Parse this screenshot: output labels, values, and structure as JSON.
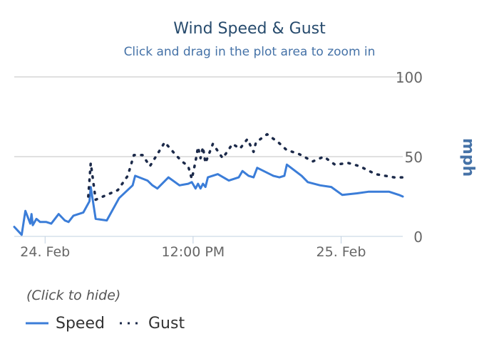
{
  "chart_data": {
    "type": "line",
    "title": "Wind Speed & Gust",
    "subtitle": "Click and drag in the plot area to zoom in",
    "ylabel": "mph",
    "ylim": [
      0,
      100
    ],
    "yticks": [
      "0",
      "50",
      "100"
    ],
    "x_range_hours": [
      0,
      31.5
    ],
    "xticks": [
      {
        "x": 2.5,
        "label": "24. Feb"
      },
      {
        "x": 14.5,
        "label": "12:00 PM"
      },
      {
        "x": 26.5,
        "label": "25. Feb"
      }
    ],
    "series": [
      {
        "name": "Speed",
        "color": "#3b7dd8",
        "style": "solid",
        "points": [
          [
            0.0,
            6
          ],
          [
            0.6,
            1
          ],
          [
            0.9,
            16
          ],
          [
            1.3,
            8
          ],
          [
            1.4,
            14
          ],
          [
            1.5,
            7
          ],
          [
            1.8,
            11
          ],
          [
            2.1,
            9
          ],
          [
            2.6,
            9
          ],
          [
            3.0,
            8
          ],
          [
            3.6,
            14
          ],
          [
            4.1,
            10
          ],
          [
            4.4,
            9
          ],
          [
            4.8,
            13
          ],
          [
            5.6,
            15
          ],
          [
            6.1,
            22
          ],
          [
            6.2,
            31
          ],
          [
            6.6,
            11
          ],
          [
            7.5,
            10
          ],
          [
            8.5,
            24
          ],
          [
            9.6,
            32
          ],
          [
            9.8,
            38
          ],
          [
            10.8,
            35
          ],
          [
            11.2,
            32
          ],
          [
            11.6,
            30
          ],
          [
            12.5,
            37
          ],
          [
            13.4,
            32
          ],
          [
            14.1,
            33
          ],
          [
            14.4,
            34
          ],
          [
            14.7,
            30
          ],
          [
            14.9,
            33
          ],
          [
            15.1,
            30
          ],
          [
            15.3,
            33
          ],
          [
            15.5,
            31
          ],
          [
            15.7,
            37
          ],
          [
            16.5,
            39
          ],
          [
            17.4,
            35
          ],
          [
            18.2,
            37
          ],
          [
            18.5,
            41
          ],
          [
            19.0,
            38
          ],
          [
            19.4,
            37
          ],
          [
            19.7,
            43
          ],
          [
            21.0,
            38
          ],
          [
            21.5,
            37
          ],
          [
            21.9,
            38
          ],
          [
            22.1,
            45
          ],
          [
            23.3,
            38
          ],
          [
            23.8,
            34
          ],
          [
            24.8,
            32
          ],
          [
            25.7,
            31
          ],
          [
            26.6,
            26
          ],
          [
            27.8,
            27
          ],
          [
            28.7,
            28
          ],
          [
            30.4,
            28
          ],
          [
            31.2,
            26
          ],
          [
            31.5,
            25
          ]
        ]
      },
      {
        "name": "Gust",
        "color": "#1c2a4a",
        "style": "dotted",
        "points": [
          [
            6.0,
            25
          ],
          [
            6.2,
            46
          ],
          [
            6.6,
            23
          ],
          [
            8.4,
            29
          ],
          [
            9.2,
            38
          ],
          [
            9.7,
            51
          ],
          [
            10.4,
            51
          ],
          [
            11.0,
            44
          ],
          [
            12.2,
            59
          ],
          [
            13.1,
            51
          ],
          [
            13.6,
            47
          ],
          [
            14.1,
            44
          ],
          [
            14.4,
            36
          ],
          [
            14.7,
            47
          ],
          [
            14.9,
            56
          ],
          [
            15.1,
            49
          ],
          [
            15.3,
            56
          ],
          [
            15.5,
            46
          ],
          [
            16.1,
            58
          ],
          [
            16.9,
            49
          ],
          [
            17.7,
            58
          ],
          [
            18.3,
            55
          ],
          [
            18.9,
            61
          ],
          [
            19.4,
            53
          ],
          [
            19.6,
            59
          ],
          [
            20.5,
            64
          ],
          [
            21.4,
            59
          ],
          [
            22.1,
            54
          ],
          [
            23.0,
            52
          ],
          [
            24.2,
            47
          ],
          [
            25.1,
            50
          ],
          [
            26.0,
            45
          ],
          [
            27.1,
            46
          ],
          [
            28.0,
            44
          ],
          [
            29.3,
            39
          ],
          [
            30.8,
            37
          ],
          [
            31.5,
            37
          ]
        ]
      }
    ],
    "legend_hint": "(Click to hide)"
  }
}
